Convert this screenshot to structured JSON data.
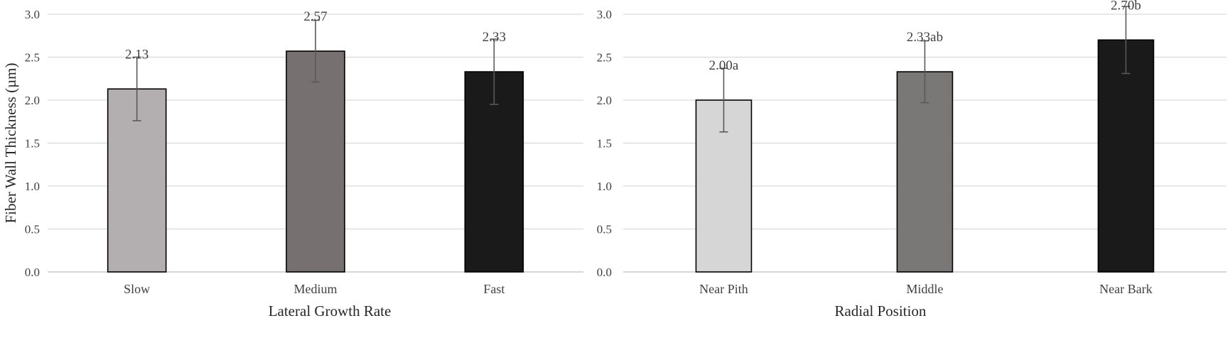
{
  "chart_data": [
    {
      "type": "bar",
      "title": "",
      "ylabel": "Fiber Wall Thickness (µm)",
      "xlabel": "Lateral Growth Rate",
      "categories": [
        "Slow",
        "Medium",
        "Fast"
      ],
      "values": [
        2.13,
        2.57,
        2.33
      ],
      "error": [
        0.37,
        0.36,
        0.38
      ],
      "data_labels": [
        "2.13",
        "2.57",
        "2.33"
      ],
      "colors": [
        "#b3aeaf",
        "#767070",
        "#1a1a1a"
      ],
      "ylim": [
        0,
        3.0
      ],
      "yticks": [
        "0.0",
        "0.5",
        "1.0",
        "1.5",
        "2.0",
        "2.5",
        "3.0"
      ],
      "grid": true,
      "legend": "none"
    },
    {
      "type": "bar",
      "title": "",
      "ylabel": "",
      "xlabel": "Radial Position",
      "categories": [
        "Near Pith",
        "Middle",
        "Near Bark"
      ],
      "values": [
        2.0,
        2.33,
        2.7
      ],
      "error": [
        0.37,
        0.36,
        0.39
      ],
      "data_labels": [
        "2.00a",
        "2.33ab",
        "2.70b"
      ],
      "colors": [
        "#d6d6d6",
        "#7a7777",
        "#1a1a1a"
      ],
      "ylim": [
        0,
        3.0
      ],
      "yticks": [
        "0.0",
        "0.5",
        "1.0",
        "1.5",
        "2.0",
        "2.5",
        "3.0"
      ],
      "grid": true,
      "legend": "none"
    }
  ]
}
